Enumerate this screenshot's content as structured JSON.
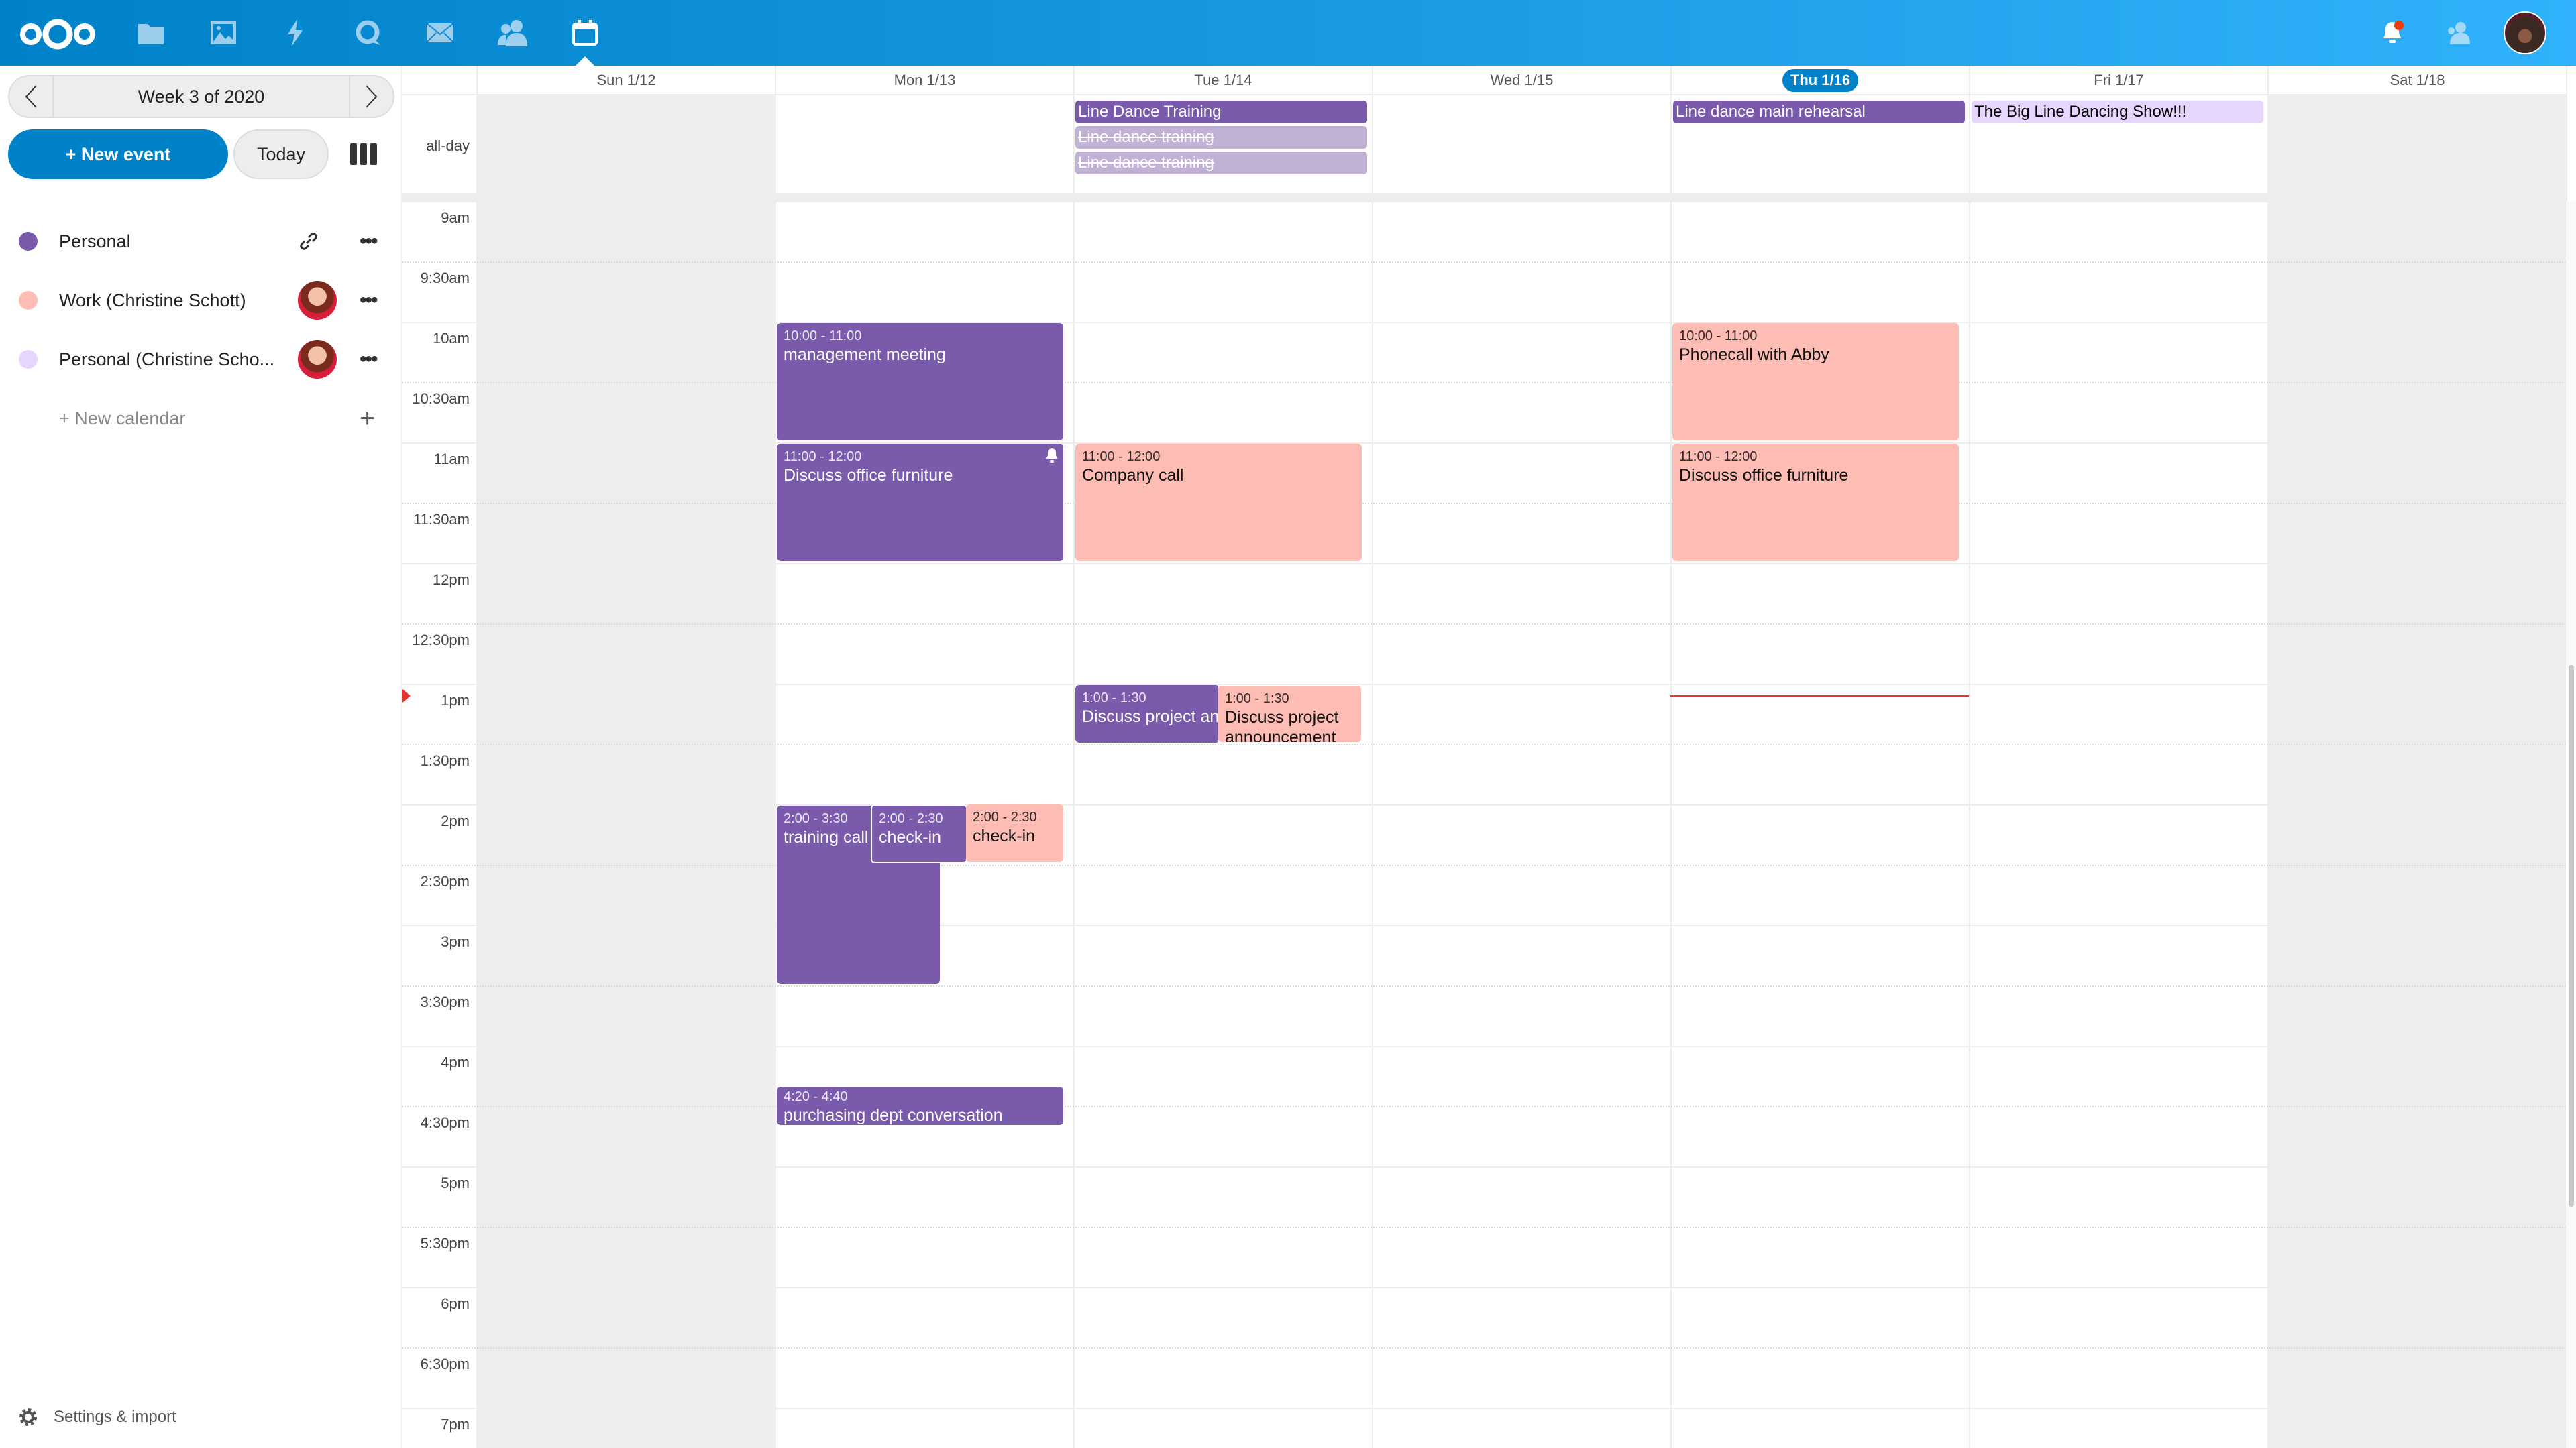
{
  "topbar": {
    "apps": [
      {
        "icon": "files-icon"
      },
      {
        "icon": "photos-icon"
      },
      {
        "icon": "activity-icon"
      },
      {
        "icon": "talk-icon"
      },
      {
        "icon": "mail-icon"
      },
      {
        "icon": "contacts-icon"
      },
      {
        "icon": "calendar-icon",
        "active": true
      }
    ],
    "right": [
      "notifications-icon",
      "contacts-menu-icon",
      "user-avatar"
    ],
    "color_start": "#0082c9",
    "color_end": "#2fb2fb"
  },
  "sidebar": {
    "week_label": "Week 3 of 2020",
    "new_event": "+ New event",
    "today": "Today",
    "calendars": [
      {
        "name": "Personal",
        "color": "#795aab",
        "action": "link-icon"
      },
      {
        "name": "Work (Christine Schott)",
        "color": "#fdbdb5",
        "action": "shared-avatar"
      },
      {
        "name": "Personal (Christine Scho...",
        "color": "#e6d5fd",
        "action": "shared-avatar"
      }
    ],
    "new_calendar": "+ New calendar",
    "settings": "Settings & import"
  },
  "week": {
    "days": [
      "Sun 1/12",
      "Mon 1/13",
      "Tue 1/14",
      "Wed 1/15",
      "Thu 1/16",
      "Fri 1/17",
      "Sat 1/18"
    ],
    "today_index": 4,
    "allday_label": "all-day",
    "times": [
      "9am",
      "9:30am",
      "10am",
      "10:30am",
      "11am",
      "11:30am",
      "12pm",
      "12:30pm",
      "1pm",
      "1:30pm",
      "2pm",
      "2:30pm",
      "3pm",
      "3:30pm",
      "4pm",
      "4:30pm",
      "5pm",
      "5:30pm",
      "6pm",
      "6:30pm",
      "7pm"
    ],
    "allday_events": [
      {
        "day": "Tue 1/14",
        "title": "Line Dance Training",
        "color": "#795aab"
      },
      {
        "day": "Tue 1/14",
        "title": "Line dance training",
        "cancelled": true,
        "color": "#c0b1d5"
      },
      {
        "day": "Tue 1/14",
        "title": "Line dance training",
        "cancelled": true,
        "color": "#c0b1d5"
      },
      {
        "day": "Thu 1/16",
        "title": "Line dance main rehearsal",
        "color": "#795aab"
      },
      {
        "day": "Fri 1/17",
        "title": "The Big Line Dancing Show!!!",
        "color": "#e6d5fd"
      }
    ],
    "events": [
      {
        "day": "Mon 1/13",
        "time": "10:00 - 11:00",
        "title": "management meeting",
        "color": "#795aab"
      },
      {
        "day": "Mon 1/13",
        "time": "11:00 - 12:00",
        "title": "Discuss office furniture",
        "color": "#795aab",
        "alarm": true
      },
      {
        "day": "Mon 1/13",
        "time": "2:00 - 3:30",
        "title": "training call",
        "color": "#795aab"
      },
      {
        "day": "Mon 1/13",
        "time": "2:00 - 2:30",
        "title": "check-in",
        "color": "#795aab"
      },
      {
        "day": "Mon 1/13",
        "time": "2:00 - 2:30",
        "title": "check-in",
        "color": "#fdbdb5"
      },
      {
        "day": "Mon 1/13",
        "time": "4:20 - 4:40",
        "title": "purchasing dept conversation",
        "color": "#795aab"
      },
      {
        "day": "Tue 1/14",
        "time": "11:00 - 12:00",
        "title": "Company call",
        "color": "#fdbdb5"
      },
      {
        "day": "Tue 1/14",
        "time": "1:00 - 1:30",
        "title": "Discuss project announcement",
        "color": "#795aab"
      },
      {
        "day": "Tue 1/14",
        "time": "1:00 - 1:30",
        "title": "Discuss project announcement",
        "color": "#fdbdb5"
      },
      {
        "day": "Thu 1/16",
        "time": "10:00 - 11:00",
        "title": "Phonecall with Abby",
        "color": "#fdbdb5"
      },
      {
        "day": "Thu 1/16",
        "time": "11:00 - 12:00",
        "title": "Discuss office furniture",
        "color": "#fdbdb5"
      }
    ],
    "now_indicator_color": "#e9322d"
  }
}
